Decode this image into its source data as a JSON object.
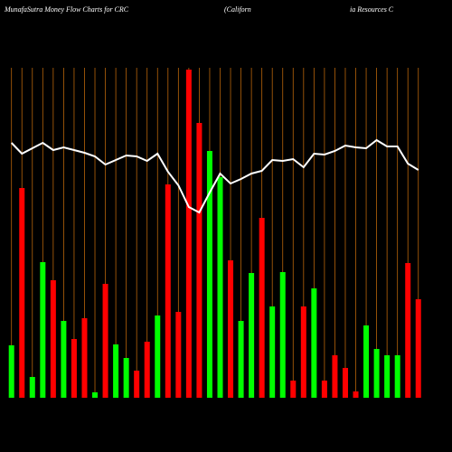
{
  "chart_data": {
    "type": "bar",
    "title_segments": [
      "MunafaSutra  Money Flow  Charts for CRC",
      "(Californ",
      "ia  Resources C"
    ],
    "categories": [
      null,
      null,
      null,
      null,
      null,
      null,
      null,
      null,
      null,
      null,
      null,
      null,
      null,
      null,
      null,
      null,
      null,
      null,
      null,
      null,
      null,
      null,
      null,
      null,
      null,
      null,
      null,
      null,
      null,
      null,
      null,
      null,
      null,
      null,
      null,
      null,
      null,
      null,
      null,
      null
    ],
    "values": [
      58,
      232,
      23,
      150,
      130,
      85,
      65,
      88,
      6,
      126,
      59,
      44,
      30,
      62,
      91,
      236,
      95,
      363,
      304,
      273,
      244,
      152,
      85,
      138,
      199,
      101,
      139,
      19,
      101,
      121,
      19,
      47,
      33,
      7,
      80,
      54,
      47,
      47,
      149,
      109
    ],
    "bar_colors": [
      "#00ff00",
      "#ff0000",
      "#00ff00",
      "#00ff00",
      "#ff0000",
      "#00ff00",
      "#ff0000",
      "#ff0000",
      "#00ff00",
      "#ff0000",
      "#00ff00",
      "#00ff00",
      "#ff0000",
      "#ff0000",
      "#00ff00",
      "#ff0000",
      "#ff0000",
      "#ff0000",
      "#ff0000",
      "#00ff00",
      "#00ff00",
      "#ff0000",
      "#00ff00",
      "#00ff00",
      "#ff0000",
      "#00ff00",
      "#00ff00",
      "#ff0000",
      "#ff0000",
      "#00ff00",
      "#ff0000",
      "#ff0000",
      "#ff0000",
      "#ff0000",
      "#00ff00",
      "#00ff00",
      "#00ff00",
      "#00ff00",
      "#ff0000",
      "#ff0000"
    ],
    "line_values": [
      282,
      270,
      276,
      282,
      274,
      277,
      274,
      271,
      267,
      258,
      263,
      268,
      267,
      262,
      270,
      250,
      235,
      211,
      205,
      227,
      248,
      237,
      242,
      248,
      251,
      263,
      262,
      264,
      255,
      270,
      269,
      273,
      279,
      277,
      276,
      285,
      278,
      278,
      259,
      252
    ],
    "line_color": "#ffffff",
    "grid_color": "#b8640a",
    "ylim": [
      0,
      365
    ]
  }
}
